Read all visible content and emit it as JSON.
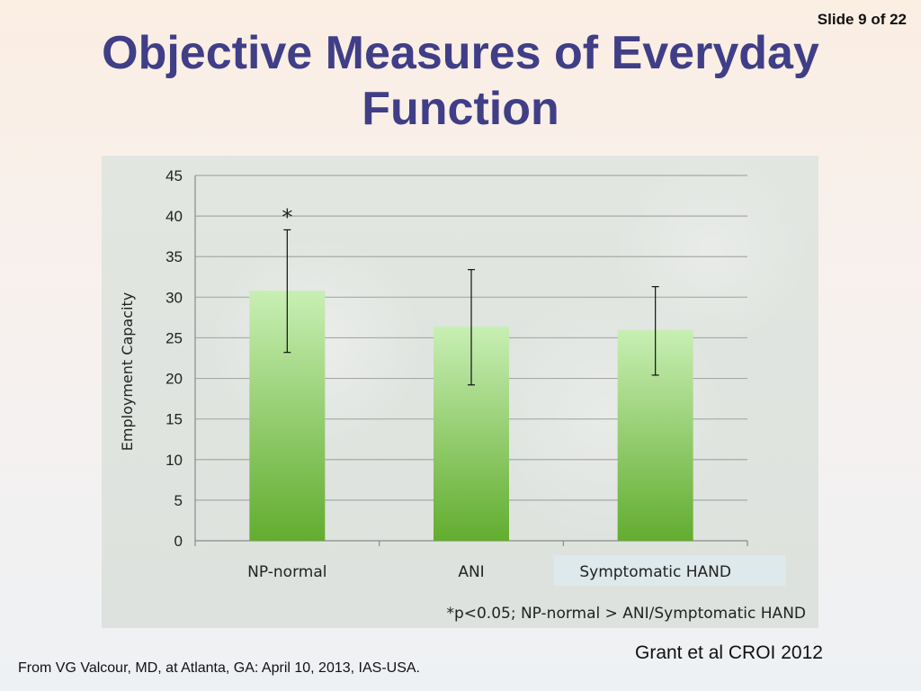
{
  "slide": {
    "number_label": "Slide 9 of 22",
    "title_line1": "Objective Measures of Everyday",
    "title_line2": "Function",
    "credit_left": "From VG Valcour, MD, at Atlanta, GA: April 10, 2013, IAS-USA.",
    "credit_right": "Grant et al CROI 2012"
  },
  "colors": {
    "title": "#3f3e86",
    "bar_top": "#c8efb4",
    "bar_bottom": "#62ad2f",
    "grid": "#a8a8a8",
    "highlight_box": "#dde9ea"
  },
  "chart_data": {
    "type": "bar",
    "ylabel": "Employment Capacity",
    "ylim": [
      0,
      45
    ],
    "yticks": [
      0,
      5,
      10,
      15,
      20,
      25,
      30,
      35,
      40,
      45
    ],
    "grid": true,
    "categories": [
      "NP-normal",
      "ANI",
      "Symptomatic HAND"
    ],
    "values": [
      30.8,
      26.4,
      26.0
    ],
    "error_low": [
      23.2,
      19.2,
      20.4
    ],
    "error_high": [
      38.3,
      33.4,
      31.3
    ],
    "significance_marker": {
      "category": "NP-normal",
      "symbol": "*"
    },
    "footnote": "*p<0.05; NP-normal > ANI/Symptomatic HAND"
  }
}
